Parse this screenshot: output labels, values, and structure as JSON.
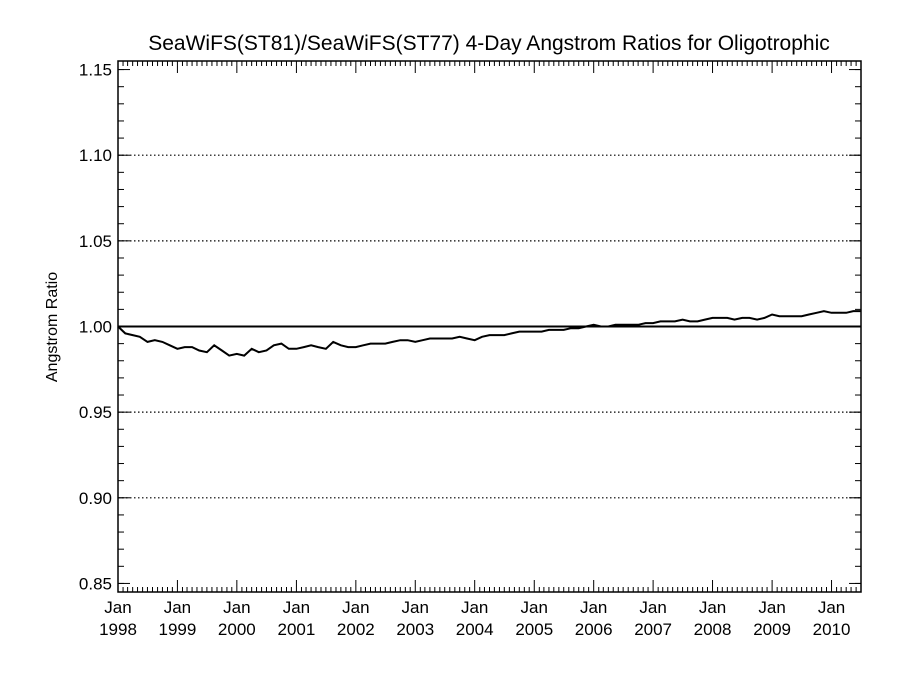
{
  "chart_data": {
    "type": "line",
    "title": "SeaWiFS(ST81)/SeaWiFS(ST77) 4-Day Angstrom Ratios for Oligotrophic",
    "ylabel": "Angstrom Ratio",
    "xlabel": "",
    "xlim": [
      "1998-01-01",
      "2010-07-01"
    ],
    "ylim": [
      0.845,
      1.155
    ],
    "yticks": [
      0.85,
      0.9,
      0.95,
      1.0,
      1.05,
      1.1,
      1.15
    ],
    "ytick_labels": [
      "0.85",
      "0.90",
      "0.95",
      "1.00",
      "1.05",
      "1.10",
      "1.15"
    ],
    "xticks": [
      {
        "date": "1998-01-01",
        "line1": "Jan",
        "line2": "1998"
      },
      {
        "date": "1999-01-01",
        "line1": "Jan",
        "line2": "1999"
      },
      {
        "date": "2000-01-01",
        "line1": "Jan",
        "line2": "2000"
      },
      {
        "date": "2001-01-01",
        "line1": "Jan",
        "line2": "2001"
      },
      {
        "date": "2002-01-01",
        "line1": "Jan",
        "line2": "2002"
      },
      {
        "date": "2003-01-01",
        "line1": "Jan",
        "line2": "2003"
      },
      {
        "date": "2004-01-01",
        "line1": "Jan",
        "line2": "2004"
      },
      {
        "date": "2005-01-01",
        "line1": "Jan",
        "line2": "2005"
      },
      {
        "date": "2006-01-01",
        "line1": "Jan",
        "line2": "2006"
      },
      {
        "date": "2007-01-01",
        "line1": "Jan",
        "line2": "2007"
      },
      {
        "date": "2008-01-01",
        "line1": "Jan",
        "line2": "2008"
      },
      {
        "date": "2009-01-01",
        "line1": "Jan",
        "line2": "2009"
      },
      {
        "date": "2010-01-01",
        "line1": "Jan",
        "line2": "2010"
      }
    ],
    "grid": "dotted horizontal at major y ticks",
    "reference_line": 1.0,
    "series": [
      {
        "x": [
          "1998-01-01",
          "1998-02-15",
          "1998-04-01",
          "1998-05-15",
          "1998-07-01",
          "1998-08-15",
          "1998-10-01",
          "1998-11-15",
          "1999-01-01",
          "1999-02-15",
          "1999-04-01",
          "1999-05-15",
          "1999-07-01",
          "1999-08-15",
          "1999-10-01",
          "1999-11-15",
          "2000-01-01",
          "2000-02-15",
          "2000-04-01",
          "2000-05-15",
          "2000-07-01",
          "2000-08-15",
          "2000-10-01",
          "2000-11-15",
          "2001-01-01",
          "2001-02-15",
          "2001-04-01",
          "2001-05-15",
          "2001-07-01",
          "2001-08-15",
          "2001-10-01",
          "2001-11-15",
          "2002-01-01",
          "2002-02-15",
          "2002-04-01",
          "2002-05-15",
          "2002-07-01",
          "2002-08-15",
          "2002-10-01",
          "2002-11-15",
          "2003-01-01",
          "2003-02-15",
          "2003-04-01",
          "2003-05-15",
          "2003-07-01",
          "2003-08-15",
          "2003-10-01",
          "2003-11-15",
          "2004-01-01",
          "2004-02-15",
          "2004-04-01",
          "2004-05-15",
          "2004-07-01",
          "2004-08-15",
          "2004-10-01",
          "2004-11-15",
          "2005-01-01",
          "2005-02-15",
          "2005-04-01",
          "2005-05-15",
          "2005-07-01",
          "2005-08-15",
          "2005-10-01",
          "2005-11-15",
          "2006-01-01",
          "2006-02-15",
          "2006-04-01",
          "2006-05-15",
          "2006-07-01",
          "2006-08-15",
          "2006-10-01",
          "2006-11-15",
          "2007-01-01",
          "2007-02-15",
          "2007-04-01",
          "2007-05-15",
          "2007-07-01",
          "2007-08-15",
          "2007-10-01",
          "2007-11-15",
          "2008-01-01",
          "2008-02-15",
          "2008-04-01",
          "2008-05-15",
          "2008-07-01",
          "2008-08-15",
          "2008-10-01",
          "2008-11-15",
          "2009-01-01",
          "2009-02-15",
          "2009-04-01",
          "2009-05-15",
          "2009-07-01",
          "2009-08-15",
          "2009-10-01",
          "2009-11-15",
          "2010-01-01",
          "2010-02-15",
          "2010-04-01",
          "2010-05-15",
          "2010-07-01"
        ],
        "y": [
          1.0,
          0.996,
          0.995,
          0.994,
          0.991,
          0.992,
          0.991,
          0.989,
          0.987,
          0.988,
          0.988,
          0.986,
          0.985,
          0.989,
          0.986,
          0.983,
          0.984,
          0.983,
          0.987,
          0.985,
          0.986,
          0.989,
          0.99,
          0.987,
          0.987,
          0.988,
          0.989,
          0.988,
          0.987,
          0.991,
          0.989,
          0.988,
          0.988,
          0.989,
          0.99,
          0.99,
          0.99,
          0.991,
          0.992,
          0.992,
          0.991,
          0.992,
          0.993,
          0.993,
          0.993,
          0.993,
          0.994,
          0.993,
          0.992,
          0.994,
          0.995,
          0.995,
          0.995,
          0.996,
          0.997,
          0.997,
          0.997,
          0.997,
          0.998,
          0.998,
          0.998,
          0.999,
          0.999,
          1.0,
          1.001,
          1.0,
          1.0,
          1.001,
          1.001,
          1.001,
          1.001,
          1.002,
          1.002,
          1.003,
          1.003,
          1.003,
          1.004,
          1.003,
          1.003,
          1.004,
          1.005,
          1.005,
          1.005,
          1.004,
          1.005,
          1.005,
          1.004,
          1.005,
          1.007,
          1.006,
          1.006,
          1.006,
          1.006,
          1.007,
          1.008,
          1.009,
          1.008,
          1.008,
          1.008,
          1.009,
          1.009
        ]
      }
    ]
  }
}
